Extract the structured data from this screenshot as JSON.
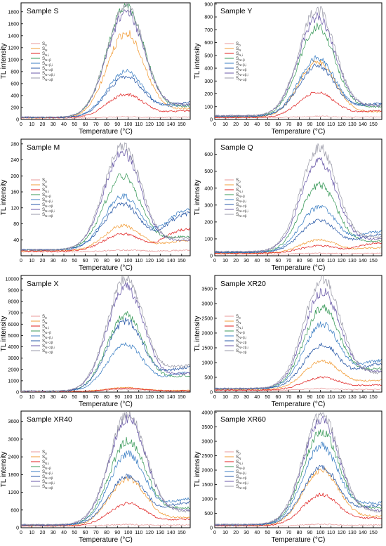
{
  "figure": {
    "x_axis_label": "Temperature (°C)",
    "y_axis_label": "TL intensity",
    "legend_labels": [
      "S₀",
      "S_N",
      "S_N,i",
      "S_N+β",
      "S_N+β,i",
      "S_N+2β",
      "S_N+2β,i",
      "S_N+3β"
    ]
  },
  "chart_data": [
    {
      "type": "line",
      "title": "Sample S",
      "xlabel": "Temperature (°C)",
      "ylabel": "TL intensity",
      "xlim": [
        0,
        158
      ],
      "ylim": [
        0,
        1950
      ],
      "x_ticks": [
        0,
        10,
        20,
        30,
        40,
        50,
        60,
        70,
        80,
        90,
        100,
        110,
        120,
        130,
        140,
        150
      ],
      "y_ticks": [
        0,
        200,
        400,
        600,
        800,
        1000,
        1200,
        1400,
        1600,
        1800
      ],
      "legend_position": "upper-left",
      "peak_temperature": 98,
      "series": [
        {
          "name": "S₀",
          "color": "#e89a9a",
          "baseline": 25,
          "peak": 45,
          "tail": 40
        },
        {
          "name": "S_N",
          "color": "#f29d38",
          "baseline": 30,
          "peak": 1450,
          "tail": 180
        },
        {
          "name": "S_N,i",
          "color": "#e0201f",
          "baseline": 30,
          "peak": 420,
          "tail": 150
        },
        {
          "name": "S_N+β",
          "color": "#3a9a5a",
          "baseline": 35,
          "peak": 1900,
          "tail": 220
        },
        {
          "name": "S_N+β,i",
          "color": "#3c7fc4",
          "baseline": 35,
          "peak": 800,
          "tail": 250
        },
        {
          "name": "S_N+2β",
          "color": "#2a5aa8",
          "baseline": 35,
          "peak": 720,
          "tail": 300
        },
        {
          "name": "S_N+2β,i",
          "color": "#6a5aa8",
          "baseline": 40,
          "peak": 1800,
          "tail": 260
        },
        {
          "name": "S_N+3β",
          "color": "#9a9aa8",
          "baseline": 40,
          "peak": 1900,
          "tail": 240
        }
      ]
    },
    {
      "type": "line",
      "title": "Sample Y",
      "xlabel": "Temperature (°C)",
      "ylabel": "TL intensity",
      "xlim": [
        0,
        158
      ],
      "ylim": [
        0,
        910
      ],
      "x_ticks": [
        0,
        10,
        20,
        30,
        40,
        50,
        60,
        70,
        80,
        90,
        100,
        110,
        120,
        130,
        140,
        150
      ],
      "y_ticks": [
        0,
        100,
        200,
        300,
        400,
        500,
        600,
        700,
        800,
        900
      ],
      "legend_position": "upper-left",
      "peak_temperature": 97,
      "series": [
        {
          "name": "S₀",
          "color": "#e89a9a",
          "baseline": 15,
          "peak": 25,
          "tail": 20
        },
        {
          "name": "S_N",
          "color": "#f29d38",
          "baseline": 20,
          "peak": 450,
          "tail": 60
        },
        {
          "name": "S_N,i",
          "color": "#e0201f",
          "baseline": 15,
          "peak": 210,
          "tail": 70
        },
        {
          "name": "S_N+β",
          "color": "#3a9a5a",
          "baseline": 25,
          "peak": 720,
          "tail": 100
        },
        {
          "name": "S_N+β,i",
          "color": "#3c7fc4",
          "baseline": 25,
          "peak": 480,
          "tail": 120
        },
        {
          "name": "S_N+2β",
          "color": "#2a5aa8",
          "baseline": 25,
          "peak": 420,
          "tail": 130
        },
        {
          "name": "S_N+2β,i",
          "color": "#6a5aa8",
          "baseline": 30,
          "peak": 800,
          "tail": 110
        },
        {
          "name": "S_N+3β",
          "color": "#9a9aa8",
          "baseline": 30,
          "peak": 860,
          "tail": 110
        }
      ]
    },
    {
      "type": "line",
      "title": "Sample M",
      "xlabel": "Temperature (°C)",
      "ylabel": "TL intensity",
      "xlim": [
        0,
        158
      ],
      "ylim": [
        0,
        292
      ],
      "x_ticks": [
        0,
        10,
        20,
        30,
        40,
        50,
        60,
        70,
        80,
        90,
        100,
        110,
        120,
        130,
        140,
        150
      ],
      "y_ticks": [
        40,
        80,
        120,
        160,
        200,
        240,
        280
      ],
      "legend_position": "upper-left",
      "peak_temperature": 95,
      "series": [
        {
          "name": "S₀",
          "color": "#e89a9a",
          "baseline": 10,
          "peak": 14,
          "tail": 14
        },
        {
          "name": "S_N",
          "color": "#f29d38",
          "baseline": 12,
          "peak": 75,
          "tail": 40
        },
        {
          "name": "S_N,i",
          "color": "#e0201f",
          "baseline": 12,
          "peak": 55,
          "tail": 70
        },
        {
          "name": "S_N+β",
          "color": "#3a9a5a",
          "baseline": 15,
          "peak": 200,
          "tail": 50
        },
        {
          "name": "S_N+β,i",
          "color": "#3c7fc4",
          "baseline": 15,
          "peak": 150,
          "tail": 120
        },
        {
          "name": "S_N+2β",
          "color": "#2a5aa8",
          "baseline": 15,
          "peak": 130,
          "tail": 110
        },
        {
          "name": "S_N+2β,i",
          "color": "#6a5aa8",
          "baseline": 15,
          "peak": 260,
          "tail": 40
        },
        {
          "name": "S_N+3β",
          "color": "#9a9aa8",
          "baseline": 15,
          "peak": 275,
          "tail": 45
        }
      ]
    },
    {
      "type": "line",
      "title": "Sample Q",
      "xlabel": "Temperature (°C)",
      "ylabel": "TL intensity",
      "xlim": [
        0,
        158
      ],
      "ylim": [
        0,
        690
      ],
      "x_ticks": [
        0,
        10,
        20,
        30,
        40,
        50,
        60,
        70,
        80,
        90,
        100,
        110,
        120,
        130,
        140,
        150
      ],
      "y_ticks": [
        0,
        100,
        200,
        300,
        400,
        500,
        600
      ],
      "legend_position": "upper-left",
      "peak_temperature": 99,
      "series": [
        {
          "name": "S₀",
          "color": "#e89a9a",
          "baseline": 10,
          "peak": 15,
          "tail": 15
        },
        {
          "name": "S_N",
          "color": "#f29d38",
          "baseline": 15,
          "peak": 95,
          "tail": 50
        },
        {
          "name": "S_N,i",
          "color": "#e0201f",
          "baseline": 15,
          "peak": 60,
          "tail": 80
        },
        {
          "name": "S_N+β",
          "color": "#3a9a5a",
          "baseline": 20,
          "peak": 420,
          "tail": 90
        },
        {
          "name": "S_N+β,i",
          "color": "#3c7fc4",
          "baseline": 20,
          "peak": 290,
          "tail": 150
        },
        {
          "name": "S_N+2β",
          "color": "#2a5aa8",
          "baseline": 20,
          "peak": 210,
          "tail": 130
        },
        {
          "name": "S_N+2β,i",
          "color": "#6a5aa8",
          "baseline": 25,
          "peak": 560,
          "tail": 100
        },
        {
          "name": "S_N+3β",
          "color": "#9a9aa8",
          "baseline": 25,
          "peak": 640,
          "tail": 110
        }
      ]
    },
    {
      "type": "line",
      "title": "Sample X",
      "xlabel": "Temperature (°C)",
      "ylabel": "TL intensity",
      "xlim": [
        0,
        158
      ],
      "ylim": [
        0,
        10300
      ],
      "x_ticks": [
        0,
        10,
        20,
        30,
        40,
        50,
        60,
        70,
        80,
        90,
        100,
        110,
        120,
        130,
        140,
        150
      ],
      "y_ticks": [
        0,
        1000,
        2000,
        3000,
        4000,
        5000,
        6000,
        7000,
        8000,
        9000,
        10000
      ],
      "legend_position": "upper-left",
      "peak_temperature": 98,
      "series": [
        {
          "name": "S₀",
          "color": "#e89a9a",
          "baseline": 50,
          "peak": 250,
          "tail": 100
        },
        {
          "name": "S_N",
          "color": "#f29d38",
          "baseline": 60,
          "peak": 400,
          "tail": 150
        },
        {
          "name": "S_N,i",
          "color": "#e0201f",
          "baseline": 60,
          "peak": 350,
          "tail": 120
        },
        {
          "name": "S_N+β",
          "color": "#3a9a5a",
          "baseline": 80,
          "peak": 6800,
          "tail": 1500
        },
        {
          "name": "S_N+β,i",
          "color": "#3c7fc4",
          "baseline": 80,
          "peak": 4200,
          "tail": 1800
        },
        {
          "name": "S_N+2β",
          "color": "#2a5aa8",
          "baseline": 80,
          "peak": 6300,
          "tail": 2300
        },
        {
          "name": "S_N+2β,i",
          "color": "#6a5aa8",
          "baseline": 90,
          "peak": 9300,
          "tail": 1700
        },
        {
          "name": "S_N+3β",
          "color": "#9a9aa8",
          "baseline": 100,
          "peak": 10100,
          "tail": 2400
        }
      ]
    },
    {
      "type": "line",
      "title": "Sample XR20",
      "xlabel": "Temperature (°C)",
      "ylabel": "TL intensity",
      "xlim": [
        0,
        158
      ],
      "ylim": [
        0,
        3950
      ],
      "x_ticks": [
        0,
        10,
        20,
        30,
        40,
        50,
        60,
        70,
        80,
        90,
        100,
        110,
        120,
        130,
        140,
        150
      ],
      "y_ticks": [
        0,
        500,
        1000,
        1500,
        2000,
        2500,
        3000,
        3500
      ],
      "legend_position": "upper-left",
      "peak_temperature": 102,
      "series": [
        {
          "name": "S₀",
          "color": "#e89a9a",
          "baseline": 60,
          "peak": 120,
          "tail": 100
        },
        {
          "name": "S_N",
          "color": "#f29d38",
          "baseline": 80,
          "peak": 1050,
          "tail": 400
        },
        {
          "name": "S_N,i",
          "color": "#e0201f",
          "baseline": 70,
          "peak": 500,
          "tail": 250
        },
        {
          "name": "S_N+β",
          "color": "#3a9a5a",
          "baseline": 110,
          "peak": 2850,
          "tail": 800
        },
        {
          "name": "S_N+β,i",
          "color": "#3c7fc4",
          "baseline": 110,
          "peak": 2300,
          "tail": 1100
        },
        {
          "name": "S_N+2β",
          "color": "#2a5aa8",
          "baseline": 110,
          "peak": 1600,
          "tail": 1000
        },
        {
          "name": "S_N+2β,i",
          "color": "#6a5aa8",
          "baseline": 120,
          "peak": 3400,
          "tail": 700
        },
        {
          "name": "S_N+3β",
          "color": "#9a9aa8",
          "baseline": 130,
          "peak": 3850,
          "tail": 650
        }
      ]
    },
    {
      "type": "line",
      "title": "Sample XR40",
      "xlabel": "Temperature (°C)",
      "ylabel": "TL intensity",
      "xlim": [
        0,
        158
      ],
      "ylim": [
        0,
        3950
      ],
      "x_ticks": [
        0,
        10,
        20,
        30,
        40,
        50,
        60,
        70,
        80,
        90,
        100,
        110,
        120,
        130,
        140,
        150
      ],
      "y_ticks": [
        0,
        600,
        1200,
        1800,
        2400,
        3000,
        3600
      ],
      "legend_position": "upper-left",
      "peak_temperature": 100,
      "series": [
        {
          "name": "S₀",
          "color": "#e89a9a",
          "baseline": 60,
          "peak": 110,
          "tail": 100
        },
        {
          "name": "S_N",
          "color": "#f29d38",
          "baseline": 70,
          "peak": 1650,
          "tail": 350
        },
        {
          "name": "S_N,i",
          "color": "#e0201f",
          "baseline": 60,
          "peak": 820,
          "tail": 300
        },
        {
          "name": "S_N+β",
          "color": "#3a9a5a",
          "baseline": 90,
          "peak": 2950,
          "tail": 700
        },
        {
          "name": "S_N+β,i",
          "color": "#3c7fc4",
          "baseline": 90,
          "peak": 2500,
          "tail": 1000
        },
        {
          "name": "S_N+2β",
          "color": "#2a5aa8",
          "baseline": 90,
          "peak": 1750,
          "tail": 900
        },
        {
          "name": "S_N+2β,i",
          "color": "#6a5aa8",
          "baseline": 100,
          "peak": 3700,
          "tail": 600
        },
        {
          "name": "S_N+3β",
          "color": "#9a9aa8",
          "baseline": 110,
          "peak": 3850,
          "tail": 550
        }
      ]
    },
    {
      "type": "line",
      "title": "Sample XR60",
      "xlabel": "Temperature (°C)",
      "ylabel": "TL intensity",
      "xlim": [
        0,
        158
      ],
      "ylim": [
        0,
        4050
      ],
      "x_ticks": [
        0,
        10,
        20,
        30,
        40,
        50,
        60,
        70,
        80,
        90,
        100,
        110,
        120,
        130,
        140,
        150
      ],
      "y_ticks": [
        0,
        500,
        1000,
        1500,
        2000,
        2500,
        3000,
        3500,
        4000
      ],
      "legend_position": "upper-left",
      "peak_temperature": 101,
      "series": [
        {
          "name": "S₀",
          "color": "#e89a9a",
          "baseline": 60,
          "peak": 120,
          "tail": 100
        },
        {
          "name": "S_N",
          "color": "#f29d38",
          "baseline": 80,
          "peak": 2000,
          "tail": 400
        },
        {
          "name": "S_N,i",
          "color": "#e0201f",
          "baseline": 70,
          "peak": 1150,
          "tail": 350
        },
        {
          "name": "S_N+β",
          "color": "#3a9a5a",
          "baseline": 100,
          "peak": 3350,
          "tail": 700
        },
        {
          "name": "S_N+β,i",
          "color": "#3c7fc4",
          "baseline": 100,
          "peak": 2850,
          "tail": 900
        },
        {
          "name": "S_N+2β",
          "color": "#2a5aa8",
          "baseline": 100,
          "peak": 2100,
          "tail": 800
        },
        {
          "name": "S_N+2β,i",
          "color": "#6a5aa8",
          "baseline": 110,
          "peak": 3750,
          "tail": 600
        },
        {
          "name": "S_N+3β",
          "color": "#9a9aa8",
          "baseline": 120,
          "peak": 3950,
          "tail": 550
        }
      ]
    }
  ]
}
